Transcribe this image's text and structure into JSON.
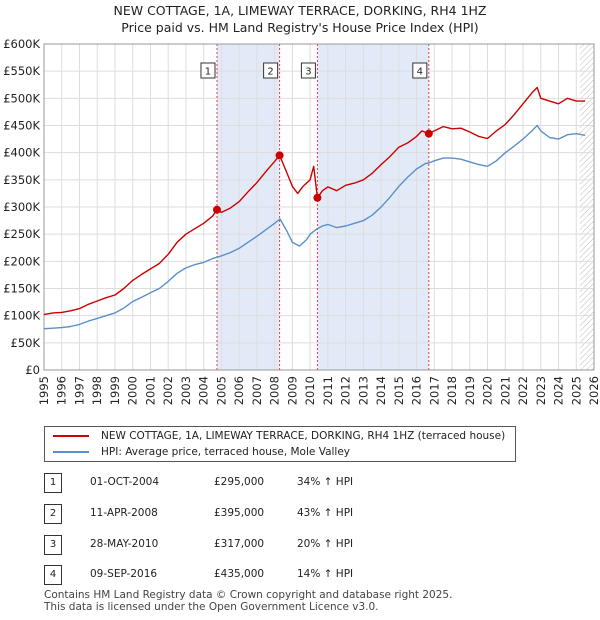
{
  "chart_data": {
    "type": "line",
    "title": "NEW COTTAGE, 1A, LIMEWAY TERRACE, DORKING, RH4 1HZ",
    "subtitle": "Price paid vs. HM Land Registry's House Price Index (HPI)",
    "xlim": [
      1995,
      2026
    ],
    "ylim": [
      0,
      600000
    ],
    "x_ticks": [
      "1995",
      "1996",
      "1997",
      "1998",
      "1999",
      "2000",
      "2001",
      "2002",
      "2003",
      "2004",
      "2005",
      "2006",
      "2007",
      "2008",
      "2009",
      "2010",
      "2011",
      "2012",
      "2013",
      "2014",
      "2015",
      "2016",
      "2017",
      "2018",
      "2019",
      "2020",
      "2021",
      "2022",
      "2023",
      "2024",
      "2025",
      "2026"
    ],
    "y_ticks": [
      {
        "value": 0,
        "label": "£0"
      },
      {
        "value": 50000,
        "label": "£50K"
      },
      {
        "value": 100000,
        "label": "£100K"
      },
      {
        "value": 150000,
        "label": "£150K"
      },
      {
        "value": 200000,
        "label": "£200K"
      },
      {
        "value": 250000,
        "label": "£250K"
      },
      {
        "value": 300000,
        "label": "£300K"
      },
      {
        "value": 350000,
        "label": "£350K"
      },
      {
        "value": 400000,
        "label": "£400K"
      },
      {
        "value": 450000,
        "label": "£450K"
      },
      {
        "value": 500000,
        "label": "£500K"
      },
      {
        "value": 550000,
        "label": "£550K"
      },
      {
        "value": 600000,
        "label": "£600K"
      }
    ],
    "grid": true,
    "shaded_periods": [
      [
        2004.75,
        2008.28
      ],
      [
        2010.41,
        2016.69
      ]
    ],
    "forecast_start": 2025.2,
    "series": [
      {
        "name": "NEW COTTAGE, 1A, LIMEWAY TERRACE, DORKING, RH4 1HZ (terraced house)",
        "color": "#cc0000",
        "points": [
          [
            1995.0,
            102000
          ],
          [
            1995.5,
            105000
          ],
          [
            1996.0,
            106000
          ],
          [
            1996.5,
            109000
          ],
          [
            1997.0,
            113000
          ],
          [
            1997.5,
            121000
          ],
          [
            1998.0,
            127000
          ],
          [
            1998.5,
            133000
          ],
          [
            1999.0,
            138000
          ],
          [
            1999.5,
            150000
          ],
          [
            2000.0,
            165000
          ],
          [
            2000.5,
            176000
          ],
          [
            2001.0,
            186000
          ],
          [
            2001.5,
            196000
          ],
          [
            2002.0,
            213000
          ],
          [
            2002.5,
            235000
          ],
          [
            2003.0,
            250000
          ],
          [
            2003.5,
            260000
          ],
          [
            2004.0,
            270000
          ],
          [
            2004.5,
            283000
          ],
          [
            2004.75,
            295000
          ],
          [
            2005.0,
            290000
          ],
          [
            2005.5,
            298000
          ],
          [
            2006.0,
            310000
          ],
          [
            2006.5,
            328000
          ],
          [
            2007.0,
            345000
          ],
          [
            2007.5,
            365000
          ],
          [
            2008.0,
            384000
          ],
          [
            2008.28,
            395000
          ],
          [
            2008.6,
            370000
          ],
          [
            2009.0,
            338000
          ],
          [
            2009.3,
            325000
          ],
          [
            2009.6,
            338000
          ],
          [
            2010.0,
            350000
          ],
          [
            2010.2,
            375000
          ],
          [
            2010.41,
            317000
          ],
          [
            2010.7,
            330000
          ],
          [
            2011.0,
            337000
          ],
          [
            2011.5,
            330000
          ],
          [
            2012.0,
            340000
          ],
          [
            2012.5,
            344000
          ],
          [
            2013.0,
            350000
          ],
          [
            2013.5,
            362000
          ],
          [
            2014.0,
            378000
          ],
          [
            2014.5,
            393000
          ],
          [
            2015.0,
            410000
          ],
          [
            2015.5,
            418000
          ],
          [
            2016.0,
            430000
          ],
          [
            2016.3,
            440000
          ],
          [
            2016.69,
            435000
          ],
          [
            2017.0,
            440000
          ],
          [
            2017.5,
            448000
          ],
          [
            2018.0,
            444000
          ],
          [
            2018.5,
            445000
          ],
          [
            2019.0,
            438000
          ],
          [
            2019.5,
            430000
          ],
          [
            2020.0,
            426000
          ],
          [
            2020.5,
            440000
          ],
          [
            2021.0,
            452000
          ],
          [
            2021.5,
            470000
          ],
          [
            2022.0,
            490000
          ],
          [
            2022.5,
            510000
          ],
          [
            2022.8,
            520000
          ],
          [
            2023.0,
            500000
          ],
          [
            2023.5,
            495000
          ],
          [
            2024.0,
            490000
          ],
          [
            2024.5,
            500000
          ],
          [
            2025.0,
            495000
          ],
          [
            2025.5,
            495000
          ]
        ]
      },
      {
        "name": "HPI: Average price, terraced house, Mole Valley",
        "color": "#5b8fc9",
        "points": [
          [
            1995.0,
            76000
          ],
          [
            1995.5,
            77000
          ],
          [
            1996.0,
            78000
          ],
          [
            1996.5,
            80000
          ],
          [
            1997.0,
            84000
          ],
          [
            1997.5,
            90000
          ],
          [
            1998.0,
            95000
          ],
          [
            1998.5,
            100000
          ],
          [
            1999.0,
            105000
          ],
          [
            1999.5,
            114000
          ],
          [
            2000.0,
            126000
          ],
          [
            2000.5,
            134000
          ],
          [
            2001.0,
            142000
          ],
          [
            2001.5,
            150000
          ],
          [
            2002.0,
            163000
          ],
          [
            2002.5,
            178000
          ],
          [
            2003.0,
            188000
          ],
          [
            2003.5,
            194000
          ],
          [
            2004.0,
            198000
          ],
          [
            2004.5,
            205000
          ],
          [
            2005.0,
            210000
          ],
          [
            2005.5,
            216000
          ],
          [
            2006.0,
            224000
          ],
          [
            2006.5,
            235000
          ],
          [
            2007.0,
            246000
          ],
          [
            2007.5,
            258000
          ],
          [
            2008.0,
            270000
          ],
          [
            2008.3,
            278000
          ],
          [
            2008.7,
            255000
          ],
          [
            2009.0,
            235000
          ],
          [
            2009.4,
            228000
          ],
          [
            2009.8,
            240000
          ],
          [
            2010.0,
            250000
          ],
          [
            2010.4,
            260000
          ],
          [
            2010.7,
            265000
          ],
          [
            2011.0,
            268000
          ],
          [
            2011.5,
            262000
          ],
          [
            2012.0,
            265000
          ],
          [
            2012.5,
            270000
          ],
          [
            2013.0,
            275000
          ],
          [
            2013.5,
            285000
          ],
          [
            2014.0,
            300000
          ],
          [
            2014.5,
            318000
          ],
          [
            2015.0,
            338000
          ],
          [
            2015.5,
            355000
          ],
          [
            2016.0,
            370000
          ],
          [
            2016.5,
            380000
          ],
          [
            2016.69,
            381000
          ],
          [
            2017.0,
            385000
          ],
          [
            2017.5,
            390000
          ],
          [
            2018.0,
            390000
          ],
          [
            2018.5,
            388000
          ],
          [
            2019.0,
            383000
          ],
          [
            2019.5,
            378000
          ],
          [
            2020.0,
            375000
          ],
          [
            2020.5,
            385000
          ],
          [
            2021.0,
            400000
          ],
          [
            2021.5,
            412000
          ],
          [
            2022.0,
            425000
          ],
          [
            2022.5,
            440000
          ],
          [
            2022.8,
            450000
          ],
          [
            2023.0,
            440000
          ],
          [
            2023.5,
            428000
          ],
          [
            2024.0,
            425000
          ],
          [
            2024.5,
            433000
          ],
          [
            2025.0,
            435000
          ],
          [
            2025.5,
            432000
          ]
        ]
      }
    ],
    "sales": [
      {
        "label": "1",
        "x": 2004.75,
        "price": 295000
      },
      {
        "label": "2",
        "x": 2008.28,
        "price": 395000
      },
      {
        "label": "3",
        "x": 2010.41,
        "price": 317000
      },
      {
        "label": "4",
        "x": 2016.69,
        "price": 435000
      }
    ]
  },
  "legend": {
    "property_label": "NEW COTTAGE, 1A, LIMEWAY TERRACE, DORKING, RH4 1HZ (terraced house)",
    "hpi_label": "HPI: Average price, terraced house, Mole Valley"
  },
  "colors": {
    "property": "#cc0000",
    "hpi": "#5b8fc9",
    "shade": "#e3eaf7"
  },
  "transactions": [
    {
      "num": "1",
      "date": "01-OCT-2004",
      "price": "£295,000",
      "hpi": "34% ↑ HPI"
    },
    {
      "num": "2",
      "date": "11-APR-2008",
      "price": "£395,000",
      "hpi": "43% ↑ HPI"
    },
    {
      "num": "3",
      "date": "28-MAY-2010",
      "price": "£317,000",
      "hpi": "20% ↑ HPI"
    },
    {
      "num": "4",
      "date": "09-SEP-2016",
      "price": "£435,000",
      "hpi": "14% ↑ HPI"
    }
  ],
  "footer": {
    "line1": "Contains HM Land Registry data © Crown copyright and database right 2025.",
    "line2": "This data is licensed under the Open Government Licence v3.0."
  }
}
